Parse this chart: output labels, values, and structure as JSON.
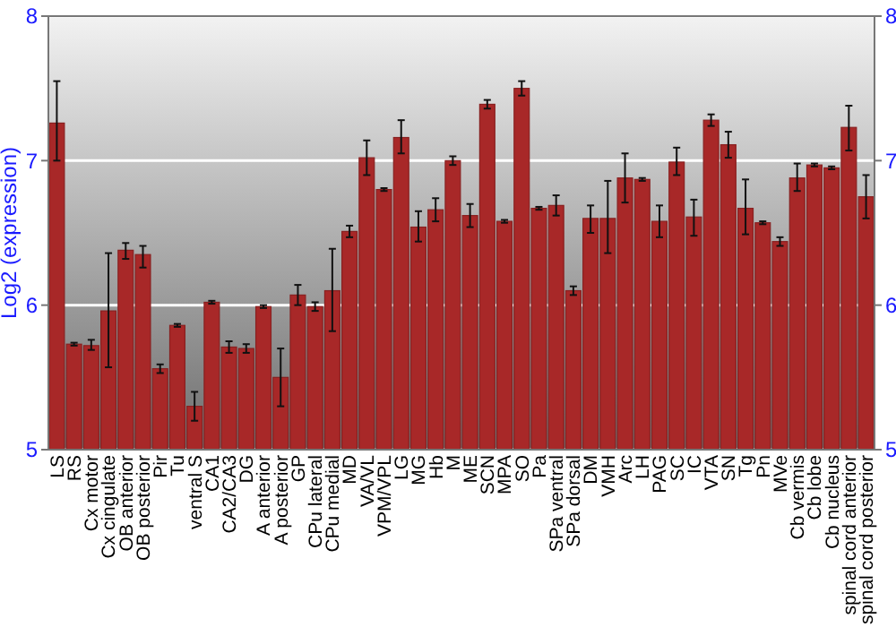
{
  "chart_data": {
    "type": "bar",
    "ylabel": "Log2 (expression)",
    "categories": [
      "LS",
      "RS",
      "Cx motor",
      "Cx cingulate",
      "OB anterior",
      "OB posterior",
      "Pir",
      "Tu",
      "ventral S",
      "CA1",
      "CA2/CA3",
      "DG",
      "A anterior",
      "A posterior",
      "GP",
      "CPu lateral",
      "CPu medial",
      "MD",
      "VA/VL",
      "VPM/VPL",
      "LG",
      "MG",
      "Hb",
      "M",
      "ME",
      "SCN",
      "MPA",
      "SO",
      "Pa",
      "SPa ventral",
      "SPa dorsal",
      "DM",
      "VMH",
      "Arc",
      "LH",
      "PAG",
      "SC",
      "IC",
      "VTA",
      "SN",
      "Tg",
      "Pn",
      "MVe",
      "Cb vermis",
      "Cb lobe",
      "Cb nucleus",
      "spinal cord anterior",
      "spinal cord posterior"
    ],
    "values": [
      7.26,
      5.73,
      5.72,
      5.96,
      6.38,
      6.35,
      5.56,
      5.86,
      5.3,
      6.02,
      5.71,
      5.7,
      5.99,
      5.5,
      6.07,
      5.99,
      6.1,
      6.51,
      7.02,
      6.8,
      7.16,
      6.54,
      6.66,
      7.0,
      6.62,
      7.39,
      6.58,
      7.5,
      6.67,
      6.69,
      6.1,
      6.6,
      6.6,
      6.88,
      6.87,
      6.58,
      6.99,
      6.61,
      7.28,
      7.11,
      6.67,
      6.57,
      6.44,
      6.88,
      6.97,
      6.95,
      7.23,
      6.75
    ],
    "errors": [
      [
        7.0,
        7.55
      ],
      0.01,
      [
        5.69,
        5.76
      ],
      [
        5.57,
        6.36
      ],
      [
        6.32,
        6.43
      ],
      [
        6.26,
        6.41
      ],
      0.03,
      0.01,
      [
        5.2,
        5.4
      ],
      0.01,
      0.04,
      0.03,
      0.01,
      [
        5.3,
        5.7
      ],
      [
        6.0,
        6.14
      ],
      0.03,
      [
        5.82,
        6.39
      ],
      0.04,
      [
        6.9,
        7.14
      ],
      0.01,
      [
        7.05,
        7.28
      ],
      [
        6.44,
        6.65
      ],
      [
        6.58,
        6.74
      ],
      0.03,
      [
        6.54,
        6.7
      ],
      0.03,
      0.01,
      0.05,
      0.01,
      [
        6.62,
        6.76
      ],
      0.03,
      [
        6.5,
        6.69
      ],
      [
        6.36,
        6.86
      ],
      [
        6.71,
        7.05
      ],
      0.01,
      [
        6.47,
        6.69
      ],
      [
        6.9,
        7.09
      ],
      [
        6.48,
        6.73
      ],
      0.04,
      [
        7.02,
        7.2
      ],
      [
        6.49,
        6.87
      ],
      0.01,
      0.03,
      [
        6.79,
        6.98
      ],
      0.01,
      0.01,
      [
        7.07,
        7.38
      ],
      [
        6.6,
        6.9
      ]
    ],
    "color": "#a82828",
    "ylim": [
      5,
      8
    ],
    "yticks": [
      5,
      6,
      7,
      8
    ],
    "y2lim": [
      5,
      8
    ],
    "y2ticks": [
      5,
      6,
      7,
      8
    ],
    "grid": "y"
  }
}
